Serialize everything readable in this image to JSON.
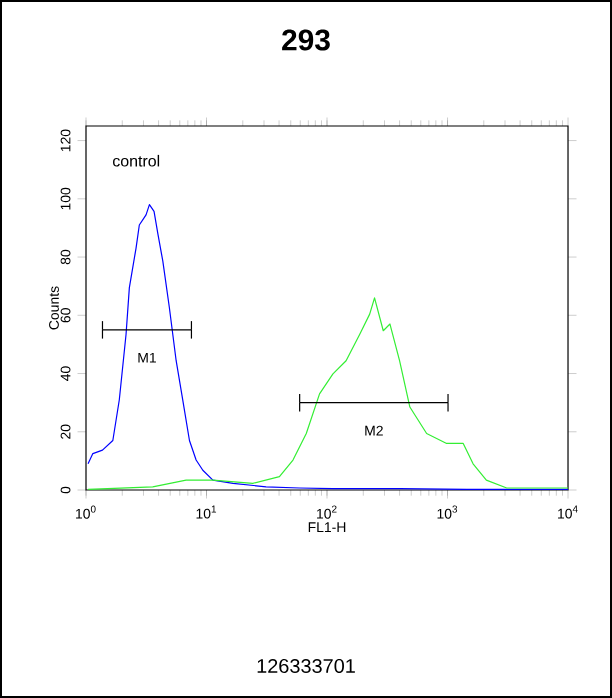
{
  "chart_data": {
    "type": "line",
    "title": "293",
    "xlabel": "FL1-H",
    "ylabel": "Counts",
    "log": "x",
    "xlim": [
      1,
      10000
    ],
    "ylim": [
      0,
      125
    ],
    "xticks": [
      {
        "value": 1,
        "label": "10$^{0}$"
      },
      {
        "value": 10,
        "label": "10$^{1}$"
      },
      {
        "value": 100,
        "label": "10$^{2}$"
      },
      {
        "value": 1000,
        "label": "10$^{3}$"
      },
      {
        "value": 10000,
        "label": "10$^{4}$"
      }
    ],
    "yticks": [
      0,
      20,
      40,
      60,
      80,
      100,
      120
    ],
    "series": [
      {
        "color": "#0000ff",
        "x": [
          1.04,
          1.14,
          1.37,
          1.67,
          1.89,
          2.15,
          2.29,
          2.6,
          2.77,
          3.15,
          3.36,
          3.67,
          3.96,
          4.34,
          4.92,
          5.6,
          6.36,
          7.22,
          8.2,
          9.32,
          11.3,
          16.6,
          31.2,
          59,
          112,
          400,
          1450,
          10000
        ],
        "values": [
          9,
          12.5,
          13.7,
          17,
          31,
          53.5,
          69.5,
          83,
          91,
          94.5,
          98,
          95.7,
          87.7,
          78.6,
          62.6,
          44.4,
          30.8,
          17,
          10.3,
          6.8,
          3.4,
          2.3,
          1.1,
          0.7,
          0.5,
          0.5,
          0.2,
          0.2
        ]
      },
      {
        "color": "#33ee33",
        "x": [
          1.04,
          3.58,
          6.77,
          11.3,
          24.2,
          40.3,
          52.2,
          67.3,
          86.7,
          112,
          144,
          187,
          226,
          248,
          293,
          333,
          400,
          487,
          671,
          984,
          1350,
          1630,
          2100,
          3100,
          10000
        ],
        "values": [
          0.2,
          1.1,
          3.4,
          3.4,
          2.3,
          4.6,
          10.3,
          19.4,
          33,
          39.9,
          44.4,
          53.5,
          60.4,
          66,
          54.7,
          57,
          44.4,
          28.5,
          19.4,
          16,
          16,
          9,
          3.4,
          0.7,
          0.7
        ]
      },
      {
        "color": "#000000",
        "x": [
          1.37,
          7.5
        ],
        "values": [
          55,
          55
        ],
        "errors": [
          3,
          3
        ]
      },
      {
        "color": "#000000",
        "x": [
          59.3,
          1010
        ],
        "values": [
          30,
          30
        ],
        "errors": [
          3,
          3
        ]
      }
    ],
    "annotations": [
      "control",
      "M1",
      "M2",
      "126333701"
    ]
  }
}
